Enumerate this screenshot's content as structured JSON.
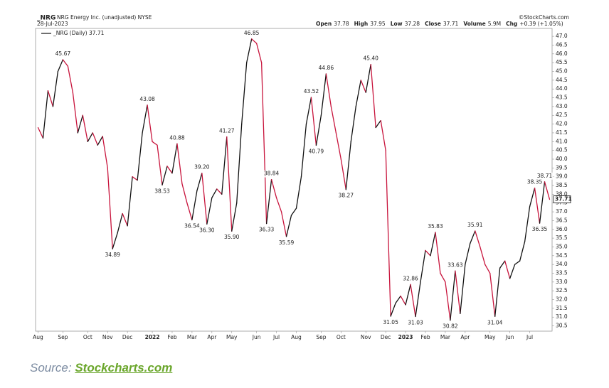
{
  "chart_data": {
    "type": "stock-line",
    "symbol": "_NRG",
    "name": "NRG Energy Inc. (unadjusted) NYSE",
    "date": "28-Jul-2023",
    "copyright": "©StockCharts.com",
    "quote": [
      {
        "label": "Open",
        "value": "37.78"
      },
      {
        "label": "High",
        "value": "37.95"
      },
      {
        "label": "Low",
        "value": "37.28"
      },
      {
        "label": "Close",
        "value": "37.71"
      },
      {
        "label": "Volume",
        "value": "5.9M"
      },
      {
        "label": "Chg",
        "value": "+0.39 (+1.05%)"
      }
    ],
    "up_color": "#111111",
    "down_color": "#c8143c",
    "categories": [
      "Aug",
      null,
      null,
      null,
      null,
      "Sep",
      null,
      null,
      null,
      null,
      "Oct",
      null,
      null,
      null,
      "Nov",
      null,
      null,
      null,
      "Dec",
      null,
      null,
      null,
      null,
      "2022",
      null,
      null,
      null,
      "Feb",
      null,
      null,
      null,
      "Mar",
      null,
      null,
      null,
      "Apr",
      null,
      null,
      null,
      "May",
      null,
      null,
      null,
      null,
      "Jun",
      null,
      null,
      null,
      "Jul",
      null,
      null,
      null,
      "Aug",
      null,
      null,
      null,
      null,
      "Sep",
      null,
      null,
      null,
      "Oct",
      null,
      null,
      null,
      null,
      "Nov",
      null,
      null,
      null,
      "Dec",
      null,
      null,
      null,
      "2023",
      null,
      null,
      null,
      "Feb",
      null,
      null,
      null,
      "Mar",
      null,
      null,
      null,
      "Apr",
      null,
      null,
      null,
      null,
      "May",
      null,
      null,
      null,
      "Jun",
      null,
      null,
      null,
      "Jul",
      null,
      null,
      null,
      null
    ],
    "series": [
      {
        "name": "_NRG (Daily) 37.71",
        "values": [
          41.8,
          41.2,
          43.9,
          43.0,
          45.0,
          45.67,
          45.3,
          43.8,
          41.5,
          42.5,
          41.0,
          41.5,
          40.8,
          41.3,
          39.5,
          34.89,
          35.8,
          36.9,
          36.2,
          39.0,
          38.8,
          41.5,
          43.08,
          41.0,
          40.8,
          38.53,
          39.6,
          39.2,
          40.88,
          38.6,
          37.5,
          36.54,
          38.2,
          39.2,
          36.3,
          37.8,
          38.3,
          38.0,
          41.27,
          35.9,
          37.5,
          42.0,
          45.5,
          46.85,
          46.6,
          45.5,
          36.33,
          38.84,
          37.8,
          37.0,
          35.59,
          36.8,
          37.2,
          39.0,
          42.0,
          43.52,
          40.79,
          42.5,
          44.86,
          43.0,
          41.5,
          40.0,
          38.27,
          41.0,
          43.0,
          44.5,
          43.8,
          45.4,
          41.8,
          42.2,
          40.5,
          31.05,
          31.8,
          32.2,
          31.7,
          32.86,
          31.03,
          33.0,
          34.8,
          34.5,
          35.83,
          33.5,
          33.0,
          30.82,
          33.63,
          31.2,
          34.0,
          35.2,
          35.91,
          35.0,
          34.0,
          33.5,
          31.04,
          33.8,
          34.2,
          33.2,
          34.0,
          34.2,
          35.3,
          37.3,
          38.35,
          36.35,
          38.71,
          37.71
        ],
        "value_labels": [
          null,
          null,
          null,
          null,
          null,
          "45.67",
          null,
          null,
          null,
          null,
          null,
          null,
          null,
          null,
          null,
          "34.89",
          null,
          null,
          null,
          null,
          null,
          null,
          "43.08",
          null,
          null,
          "38.53",
          null,
          null,
          "40.88",
          null,
          null,
          "36.54",
          null,
          "39.20",
          "36.30",
          null,
          null,
          null,
          "41.27",
          "35.90",
          null,
          null,
          null,
          "46.85",
          null,
          null,
          "36.33",
          "38.84",
          null,
          null,
          "35.59",
          null,
          null,
          null,
          null,
          "43.52",
          "40.79",
          null,
          "44.86",
          null,
          null,
          null,
          "38.27",
          null,
          null,
          null,
          null,
          "45.40",
          null,
          null,
          null,
          "31.05",
          null,
          null,
          null,
          "32.86",
          "31.03",
          null,
          null,
          null,
          "35.83",
          null,
          null,
          "30.82",
          "33.63",
          null,
          null,
          null,
          "35.91",
          null,
          null,
          null,
          "31.04",
          null,
          null,
          null,
          null,
          null,
          null,
          null,
          "38.35",
          "36.35",
          "38.71",
          "37.71"
        ]
      }
    ],
    "ylim": [
      30.2,
      47.45
    ],
    "yticks": [
      {
        "value": 30.5,
        "label": "30.5"
      },
      {
        "value": 31,
        "label": "31.0"
      },
      {
        "value": 31.5,
        "label": "31.5"
      },
      {
        "value": 32,
        "label": "32.0"
      },
      {
        "value": 32.5,
        "label": "32.5"
      },
      {
        "value": 33,
        "label": "33.0"
      },
      {
        "value": 33.5,
        "label": "33.5"
      },
      {
        "value": 34,
        "label": "34.0"
      },
      {
        "value": 34.5,
        "label": "34.5"
      },
      {
        "value": 35,
        "label": "35.0"
      },
      {
        "value": 35.5,
        "label": "35.5"
      },
      {
        "value": 36,
        "label": "36.0"
      },
      {
        "value": 36.5,
        "label": "36.5"
      },
      {
        "value": 37,
        "label": "37.0"
      },
      {
        "value": 37.5,
        "label": "37.5"
      },
      {
        "value": 38,
        "label": "38.0"
      },
      {
        "value": 38.5,
        "label": "38.5"
      },
      {
        "value": 39,
        "label": "39.0"
      },
      {
        "value": 39.5,
        "label": "39.5"
      },
      {
        "value": 40,
        "label": "40.0"
      },
      {
        "value": 40.5,
        "label": "40.5"
      },
      {
        "value": 41,
        "label": "41.0"
      },
      {
        "value": 41.5,
        "label": "41.5"
      },
      {
        "value": 42,
        "label": "42.0"
      },
      {
        "value": 42.5,
        "label": "42.5"
      },
      {
        "value": 43,
        "label": "43.0"
      },
      {
        "value": 43.5,
        "label": "43.5"
      },
      {
        "value": 44,
        "label": "44.0"
      },
      {
        "value": 44.5,
        "label": "44.5"
      },
      {
        "value": 45,
        "label": "45.0"
      },
      {
        "value": 45.5,
        "label": "45.5"
      },
      {
        "value": 46,
        "label": "46.0"
      },
      {
        "value": 46.5,
        "label": "46.5"
      },
      {
        "value": 47,
        "label": "47.0"
      }
    ]
  },
  "source": {
    "prefix": "Source:",
    "link": "Stockcharts.com"
  }
}
